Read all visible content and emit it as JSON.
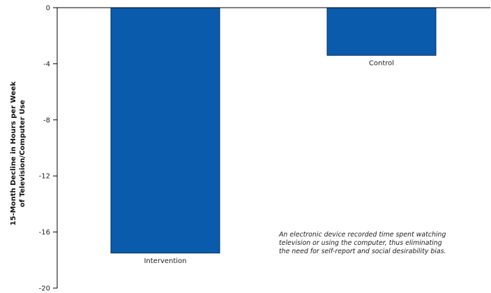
{
  "chart_data": {
    "type": "bar",
    "categories": [
      "Intervention",
      "Control"
    ],
    "values": [
      -17.5,
      -3.4
    ],
    "title": "",
    "xlabel": "",
    "ylabel": "15-Month Decline in Hours per Week of Television/Computer Use",
    "ylabel_lines": [
      "15-Month Decline in Hours per Week",
      "of Television/Computer Use"
    ],
    "ylim": [
      -20,
      0
    ],
    "yticks": [
      0,
      -4,
      -8,
      -12,
      -16,
      -20
    ],
    "ytick_labels": [
      "0",
      "-4",
      "-8",
      "-12",
      "-16",
      "-20"
    ],
    "grid": false,
    "bar_color": "#0a5bab",
    "bar_edge_color": "#0d2f5e",
    "annotation": "An electronic device recorded time spent watching television or using the computer, thus eliminating the need for self-report and social desirability bias.",
    "annotation_lines": [
      "An electronic device recorded time spent watching",
      "television or using the computer, thus eliminating",
      "the need for self-report and social desirability bias."
    ]
  }
}
